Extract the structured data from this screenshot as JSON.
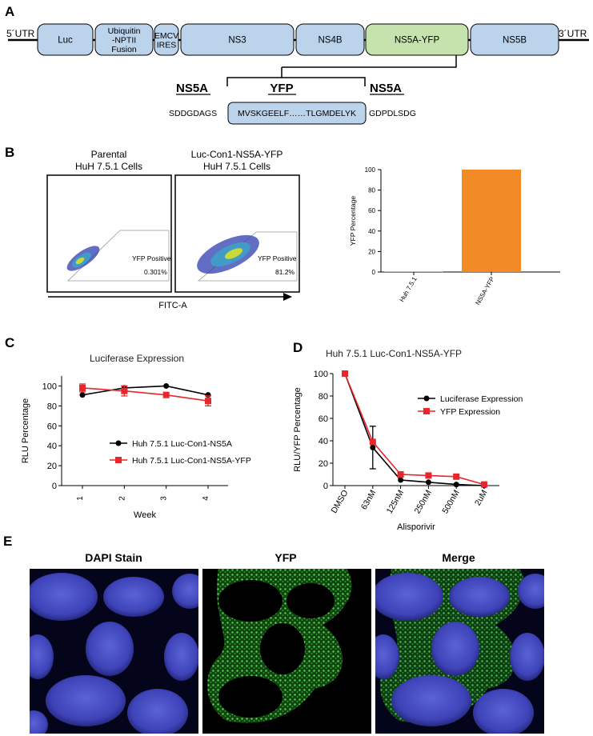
{
  "figure": {
    "panel_labels": [
      "A",
      "B",
      "C",
      "D",
      "E"
    ]
  },
  "panel_a": {
    "utr5": "5´UTR",
    "utr3": "3´UTR",
    "segments": [
      {
        "name": "Luc",
        "lines": [
          "Luc"
        ]
      },
      {
        "name": "Ubiquitin-NPTII Fusion",
        "lines": [
          "Ubiquitin",
          "-NPTII",
          "Fusion"
        ]
      },
      {
        "name": "EMCV IRES",
        "lines": [
          "EMCV",
          "IRES"
        ]
      },
      {
        "name": "NS3",
        "lines": [
          "NS3"
        ]
      },
      {
        "name": "NS4B",
        "lines": [
          "NS4B"
        ]
      },
      {
        "name": "NS5A-YFP",
        "lines": [
          "NS5A-YFP"
        ],
        "color": "#c6e3ad"
      },
      {
        "name": "NS5B",
        "lines": [
          "NS5B"
        ]
      }
    ],
    "segment_color": "#bcd3ec",
    "ns5a_left_label": "NS5A",
    "yfp_label": "YFP",
    "ns5a_right_label": "NS5A",
    "seq_left": "SDDGDAGS",
    "seq_yfp": "MVSKGEELF……TLGMDELYK",
    "seq_right": "GDPDLSDG"
  },
  "panel_b": {
    "flow_plots": [
      {
        "title_lines": [
          "Parental",
          "HuH 7.5.1 Cells"
        ],
        "gate_label": "YFP Positive",
        "gate_value": "0.301%"
      },
      {
        "title_lines": [
          "Luc-Con1-NS5A-YFP",
          "HuH 7.5.1 Cells"
        ],
        "gate_label": "YFP Positive",
        "gate_value": "81.2%"
      }
    ],
    "x_axis_label": "FITC-A",
    "chart_data": {
      "type": "bar",
      "categories": [
        "Huh 7.5.1",
        "NS5A-YFP"
      ],
      "values": [
        0.3,
        100
      ],
      "ylabel": "YFP Percentage",
      "ylim": [
        0,
        100
      ],
      "yticks": [
        0,
        20,
        40,
        60,
        80,
        100
      ],
      "bar_color": "#f28a26"
    }
  },
  "panel_c": {
    "chart_data": {
      "type": "line",
      "title": "Luciferase Expression",
      "x": [
        1,
        2,
        3,
        4
      ],
      "xlabel": "Week",
      "ylabel": "RLU Percentage",
      "ylim": [
        0,
        110
      ],
      "yticks": [
        0,
        20,
        40,
        60,
        80,
        100
      ],
      "series": [
        {
          "name": "Huh 7.5.1 Luc-Con1-NS5A",
          "values": [
            91,
            98,
            100,
            91
          ],
          "errors": [
            0,
            2,
            0,
            0
          ],
          "color": "#000000",
          "marker": "circle"
        },
        {
          "name": "Huh 7.5.1 Luc-Con1-NS5A-YFP",
          "values": [
            98,
            95,
            91,
            85
          ],
          "errors": [
            4,
            5,
            0,
            5
          ],
          "color": "#e8262c",
          "marker": "square"
        }
      ],
      "legend": "lower-right"
    }
  },
  "panel_d": {
    "chart_data": {
      "type": "line",
      "title": "Huh 7.5.1 Luc-Con1-NS5A-YFP",
      "categories": [
        "DMSO",
        "63nM",
        "125nM",
        "250nM",
        "500nM",
        "2uM"
      ],
      "xlabel": "Alisporivir",
      "ylabel": "RLU/YFP Percentage",
      "ylim": [
        0,
        100
      ],
      "yticks": [
        0,
        20,
        40,
        60,
        80,
        100
      ],
      "series": [
        {
          "name": "Luciferase Expression",
          "values": [
            100,
            34,
            5,
            3,
            1,
            0
          ],
          "errors": [
            0,
            19,
            0,
            0,
            0,
            0
          ],
          "color": "#000000",
          "marker": "circle"
        },
        {
          "name": "YFP Expression",
          "values": [
            100,
            39,
            10,
            9,
            8,
            1
          ],
          "errors": [
            0,
            0,
            0,
            0,
            0,
            0
          ],
          "color": "#e8262c",
          "marker": "square"
        }
      ],
      "legend": "upper-right"
    }
  },
  "panel_e": {
    "images": [
      {
        "title": "DAPI Stain"
      },
      {
        "title": "YFP"
      },
      {
        "title": "Merge"
      }
    ]
  }
}
